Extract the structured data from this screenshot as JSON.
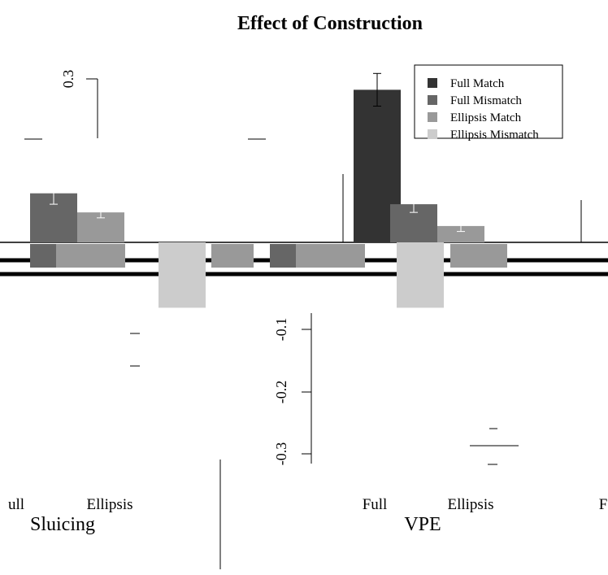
{
  "chart_data": {
    "type": "bar",
    "title": "Effect of Construction",
    "ylim": [
      -0.35,
      0.35
    ],
    "y_ticks": [
      -0.3,
      -0.2,
      -0.1,
      0.3
    ],
    "y_tick_labels": [
      "-0.3",
      "-0.2",
      "-0.1",
      "0.3"
    ],
    "grid": false,
    "legend_position": "top-right",
    "series": [
      {
        "name": "Full Match",
        "color": "#333333"
      },
      {
        "name": "Full Mismatch",
        "color": "#666666"
      },
      {
        "name": "Ellipsis Match",
        "color": "#999999"
      },
      {
        "name": "Ellipsis Mismatch",
        "color": "#cccccc"
      }
    ],
    "groups": [
      {
        "label": "Sluicing",
        "sublabels": [
          "Full",
          "Ellipsis"
        ]
      },
      {
        "label": "VPE",
        "sublabels": [
          "Full",
          "Ellipsis"
        ]
      }
    ],
    "bars": [
      {
        "group": "Sluicing",
        "series": "Full Mismatch",
        "value": 0.09,
        "err": 0.02
      },
      {
        "group": "Sluicing",
        "series": "Ellipsis Match",
        "value": 0.055,
        "err": 0.01
      },
      {
        "group": "Sluicing",
        "series": "Ellipsis Mismatch",
        "value": -0.12,
        "err": 0.0
      },
      {
        "group": "VPE",
        "series": "Full Match",
        "value": 0.28,
        "err": 0.03
      },
      {
        "group": "VPE",
        "series": "Full Mismatch",
        "value": 0.07,
        "err": 0.015
      },
      {
        "group": "VPE",
        "series": "Ellipsis Match",
        "value": 0.03,
        "err": 0.01
      },
      {
        "group": "VPE",
        "series": "Ellipsis Mismatch",
        "value": -0.12,
        "err": 0.0
      }
    ],
    "x_labels_visible": [
      "ull",
      "Ellipsis",
      "Full",
      "Ellipsis",
      "F"
    ],
    "group_labels_visible": [
      "Sluicing",
      "VPE"
    ]
  }
}
